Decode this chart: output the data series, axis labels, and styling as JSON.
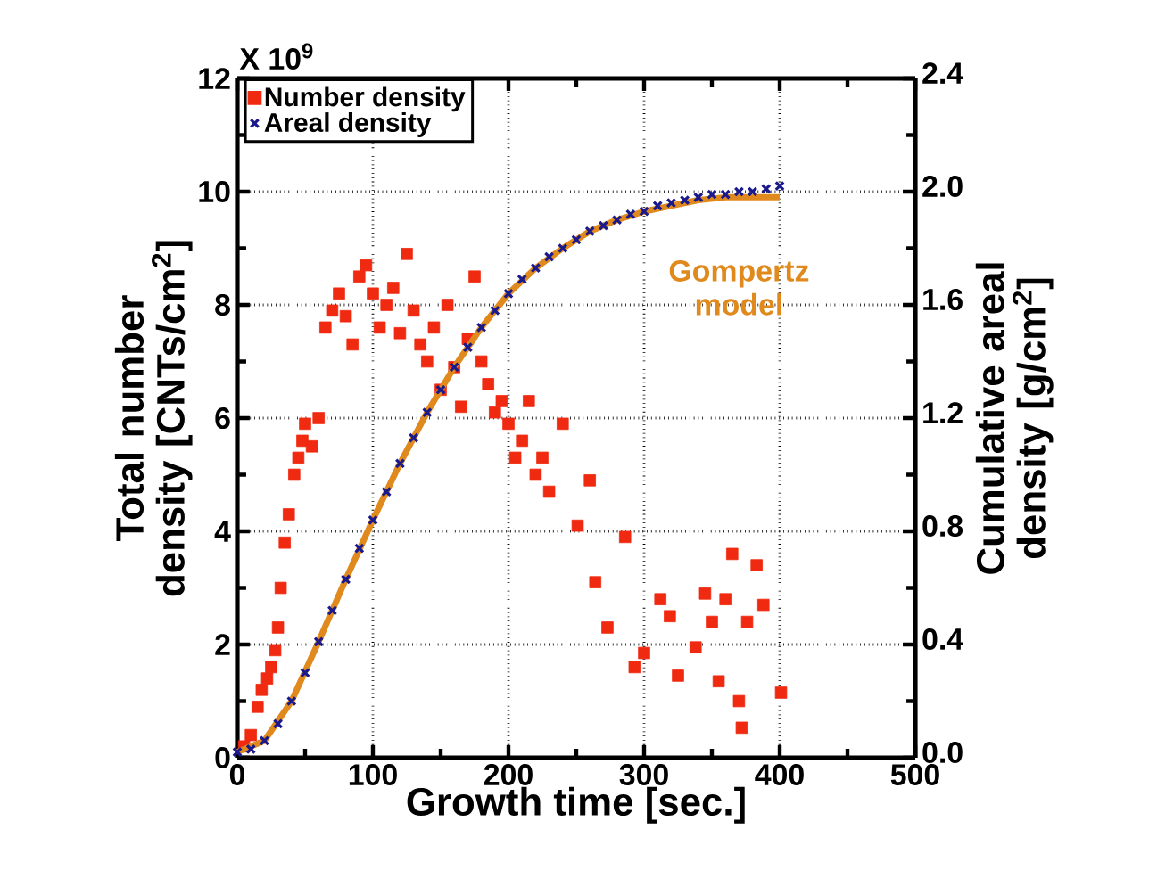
{
  "chart_data": {
    "type": "scatter",
    "xlabel": "Growth time [sec.]",
    "ylabel": "Total number density [CNTs/cm$^{2}$]",
    "y2label": "Cumulative areal density [g/cm$^{2}$]",
    "annotations": [
      "X 10$^{9}$"
    ],
    "xlim": [
      0,
      500
    ],
    "xticks": [
      0,
      100,
      200,
      300,
      400,
      500
    ],
    "ylim": [
      0,
      12
    ],
    "yticks": [
      0,
      2,
      4,
      6,
      8,
      10,
      12
    ],
    "y2lim": [
      0,
      2.4
    ],
    "y2ticks": [
      {
        "value": 0,
        "label": "0.0"
      },
      0.4,
      0.8,
      1.2,
      1.6,
      {
        "value": 2,
        "label": "2.0"
      },
      2.4
    ],
    "grid": true,
    "legend": "top left",
    "series": [
      {
        "name": "Number density",
        "marker": "square",
        "color": "#f02a10",
        "x": [
          5,
          10,
          15,
          18,
          22,
          25,
          28,
          30,
          32,
          35,
          38,
          42,
          45,
          48,
          50,
          55,
          60,
          65,
          70,
          75,
          80,
          85,
          90,
          95,
          100,
          105,
          110,
          115,
          120,
          125,
          130,
          135,
          140,
          145,
          150,
          155,
          160,
          165,
          170,
          175,
          180,
          185,
          190,
          195,
          200,
          205,
          210,
          215,
          220,
          225,
          230,
          240,
          251,
          260,
          264,
          273,
          286,
          293,
          300,
          312,
          319,
          325,
          338,
          345,
          350,
          355,
          360,
          365,
          370,
          372,
          376,
          383,
          388,
          401
        ],
        "values": [
          0.2,
          0.4,
          0.9,
          1.2,
          1.4,
          1.6,
          1.9,
          2.3,
          3.0,
          3.8,
          4.3,
          5.0,
          5.3,
          5.6,
          5.9,
          5.5,
          6.0,
          7.6,
          7.9,
          8.2,
          7.8,
          7.3,
          8.5,
          8.7,
          8.2,
          7.6,
          8.0,
          8.3,
          7.5,
          8.9,
          7.9,
          7.3,
          7.0,
          7.6,
          6.5,
          8.0,
          6.9,
          6.2,
          7.4,
          8.5,
          7.0,
          6.6,
          6.1,
          6.3,
          5.9,
          5.3,
          5.6,
          6.3,
          5.0,
          5.3,
          4.7,
          5.9,
          4.1,
          4.9,
          3.1,
          2.3,
          3.9,
          1.6,
          1.85,
          2.8,
          2.5,
          1.45,
          1.95,
          2.9,
          2.4,
          1.35,
          2.8,
          3.6,
          1.0,
          0.53,
          2.4,
          3.4,
          2.7,
          1.15
        ]
      },
      {
        "name": "Areal density",
        "marker": "cross",
        "color": "#1a1a8c",
        "axis": "y2",
        "x": [
          0,
          10,
          20,
          30,
          40,
          50,
          60,
          70,
          80,
          90,
          100,
          110,
          120,
          130,
          140,
          150,
          160,
          170,
          180,
          190,
          200,
          210,
          220,
          230,
          240,
          250,
          260,
          270,
          280,
          290,
          300,
          310,
          320,
          330,
          340,
          350,
          360,
          370,
          380,
          390,
          400
        ],
        "values": [
          0.02,
          0.03,
          0.06,
          0.12,
          0.2,
          0.3,
          0.41,
          0.52,
          0.63,
          0.74,
          0.84,
          0.94,
          1.04,
          1.13,
          1.22,
          1.3,
          1.38,
          1.45,
          1.52,
          1.58,
          1.64,
          1.69,
          1.73,
          1.77,
          1.8,
          1.83,
          1.86,
          1.88,
          1.9,
          1.92,
          1.93,
          1.95,
          1.96,
          1.97,
          1.98,
          1.99,
          1.99,
          2.0,
          2.0,
          2.01,
          2.02
        ]
      },
      {
        "name": "Gompertz model",
        "type": "line",
        "marker": "none",
        "line_style": "solid",
        "color": "#e08a1e",
        "axis": "y2",
        "x": [
          0,
          20,
          40,
          60,
          80,
          100,
          120,
          140,
          160,
          180,
          200,
          220,
          240,
          260,
          280,
          300,
          320,
          340,
          360,
          380,
          400
        ],
        "values": [
          0.02,
          0.06,
          0.2,
          0.41,
          0.63,
          0.84,
          1.04,
          1.22,
          1.38,
          1.52,
          1.64,
          1.73,
          1.8,
          1.86,
          1.9,
          1.93,
          1.95,
          1.97,
          1.98,
          1.98,
          1.98
        ]
      }
    ]
  }
}
